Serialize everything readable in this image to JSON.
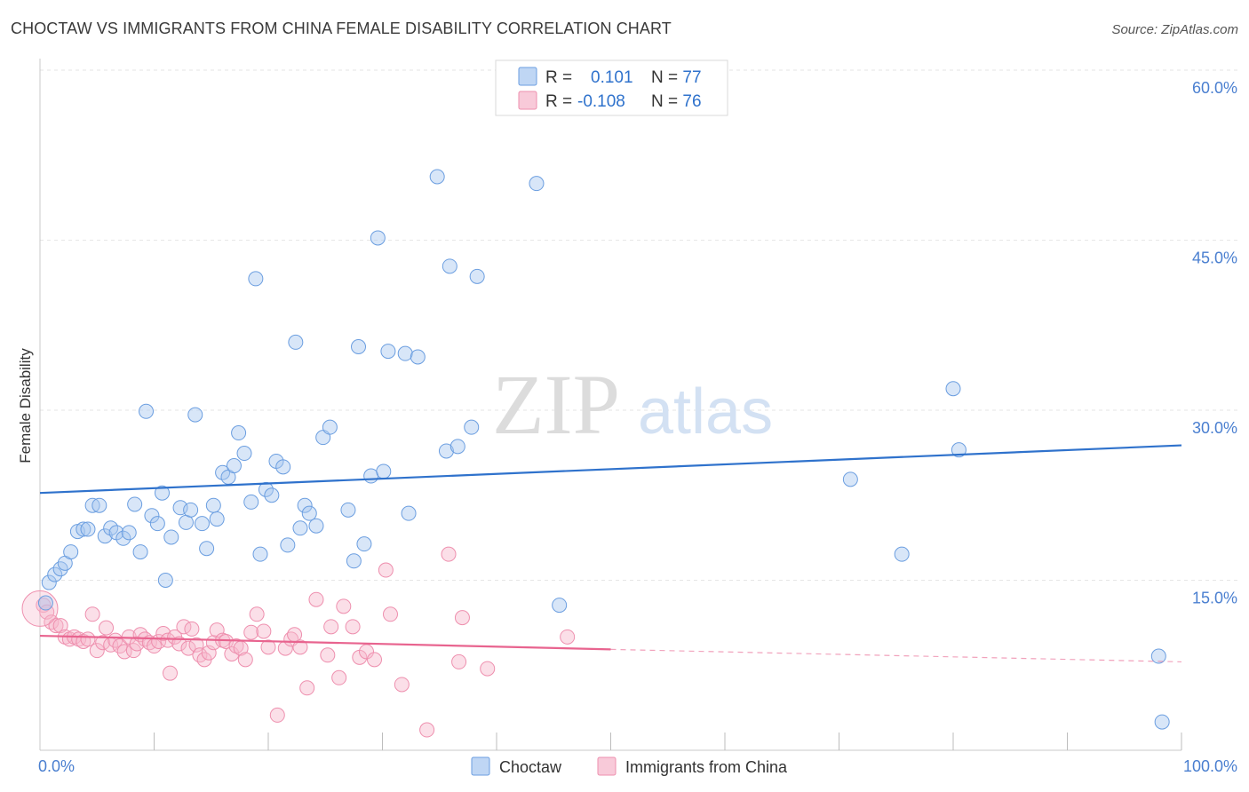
{
  "title": "CHOCTAW VS IMMIGRANTS FROM CHINA FEMALE DISABILITY CORRELATION CHART",
  "source": "Source: ZipAtlas.com",
  "watermark": {
    "part1": "ZIP",
    "part2": "atlas"
  },
  "colors": {
    "choctaw_fill": "#a9c8f0",
    "choctaw_stroke": "#6b9ee0",
    "choctaw_line": "#2f72cc",
    "china_fill": "#f6b8cc",
    "china_stroke": "#ee8fae",
    "china_line": "#e8648f",
    "tick_text": "#4a7fd0",
    "grid": "#e6e6e6"
  },
  "legend": {
    "rows": [
      {
        "r_label": "R = ",
        "r_value": "0.101",
        "n_label": "N = ",
        "n_value": "77"
      },
      {
        "r_label": "R = ",
        "r_value": "-0.108",
        "n_label": "N = ",
        "n_value": "76"
      }
    ]
  },
  "chart_data": {
    "type": "scatter",
    "title": "CHOCTAW VS IMMIGRANTS FROM CHINA FEMALE DISABILITY CORRELATION CHART",
    "xlabel": "",
    "ylabel": "Female Disability",
    "xlim": [
      0,
      100
    ],
    "ylim": [
      0,
      60
    ],
    "x_tick_labels": [
      "0.0%",
      "100.0%"
    ],
    "y_ticks": [
      15,
      30,
      45,
      60
    ],
    "y_tick_labels": [
      "15.0%",
      "30.0%",
      "45.0%",
      "60.0%"
    ],
    "grid": true,
    "legend_position": "top-center",
    "series": [
      {
        "name": "Choctaw",
        "r": 0.101,
        "n": 77,
        "trend": {
          "x": [
            0,
            100
          ],
          "y": [
            22.7,
            26.9
          ]
        },
        "points": [
          [
            0.5,
            13.0
          ],
          [
            0.8,
            14.8
          ],
          [
            1.3,
            15.5
          ],
          [
            1.8,
            16.0
          ],
          [
            2.2,
            16.5
          ],
          [
            2.7,
            17.5
          ],
          [
            3.3,
            19.3
          ],
          [
            3.8,
            19.5
          ],
          [
            4.2,
            19.5
          ],
          [
            4.6,
            21.6
          ],
          [
            5.2,
            21.6
          ],
          [
            5.7,
            18.9
          ],
          [
            6.2,
            19.6
          ],
          [
            6.7,
            19.2
          ],
          [
            7.3,
            18.7
          ],
          [
            7.8,
            19.2
          ],
          [
            8.3,
            21.7
          ],
          [
            8.8,
            17.5
          ],
          [
            9.3,
            29.9
          ],
          [
            9.8,
            20.7
          ],
          [
            10.3,
            20.0
          ],
          [
            10.7,
            22.7
          ],
          [
            11.0,
            15.0
          ],
          [
            11.5,
            18.8
          ],
          [
            12.3,
            21.4
          ],
          [
            12.8,
            20.1
          ],
          [
            13.2,
            21.2
          ],
          [
            13.6,
            29.6
          ],
          [
            14.2,
            20.0
          ],
          [
            14.6,
            17.8
          ],
          [
            15.2,
            21.6
          ],
          [
            15.5,
            20.4
          ],
          [
            16.0,
            24.5
          ],
          [
            16.5,
            24.1
          ],
          [
            17.0,
            25.1
          ],
          [
            17.4,
            28.0
          ],
          [
            17.9,
            26.2
          ],
          [
            18.5,
            21.9
          ],
          [
            18.9,
            41.6
          ],
          [
            19.3,
            17.3
          ],
          [
            19.8,
            23.0
          ],
          [
            20.3,
            22.5
          ],
          [
            20.7,
            25.5
          ],
          [
            21.3,
            25.0
          ],
          [
            21.7,
            18.1
          ],
          [
            22.4,
            36.0
          ],
          [
            22.8,
            19.6
          ],
          [
            23.2,
            21.6
          ],
          [
            23.6,
            20.9
          ],
          [
            24.2,
            19.8
          ],
          [
            24.8,
            27.6
          ],
          [
            25.4,
            28.5
          ],
          [
            27.0,
            21.2
          ],
          [
            27.5,
            16.7
          ],
          [
            27.9,
            35.6
          ],
          [
            28.4,
            18.2
          ],
          [
            29.0,
            24.2
          ],
          [
            29.6,
            45.2
          ],
          [
            30.1,
            24.6
          ],
          [
            30.5,
            35.2
          ],
          [
            32.0,
            35.0
          ],
          [
            32.3,
            20.9
          ],
          [
            33.1,
            34.7
          ],
          [
            34.8,
            50.6
          ],
          [
            35.6,
            26.4
          ],
          [
            35.9,
            42.7
          ],
          [
            36.6,
            26.8
          ],
          [
            37.8,
            28.5
          ],
          [
            38.3,
            41.8
          ],
          [
            43.5,
            50.0
          ],
          [
            45.5,
            12.8
          ],
          [
            71.0,
            23.9
          ],
          [
            75.5,
            17.3
          ],
          [
            80.0,
            31.9
          ],
          [
            80.5,
            26.5
          ],
          [
            98.0,
            8.3
          ],
          [
            98.3,
            2.5
          ]
        ]
      },
      {
        "name": "Immigrants from China",
        "r": -0.108,
        "n": 76,
        "trend": {
          "x": [
            0,
            50
          ],
          "y": [
            10.1,
            8.9
          ]
        },
        "trend_dashed": {
          "x": [
            50,
            100
          ],
          "y": [
            8.9,
            7.8
          ]
        },
        "points": [
          [
            0.3,
            12.8
          ],
          [
            0.6,
            12.2
          ],
          [
            1.0,
            11.3
          ],
          [
            1.4,
            11.0
          ],
          [
            1.8,
            11.0
          ],
          [
            2.2,
            10.0
          ],
          [
            2.6,
            9.8
          ],
          [
            3.0,
            10.0
          ],
          [
            3.4,
            9.8
          ],
          [
            3.8,
            9.6
          ],
          [
            4.2,
            9.8
          ],
          [
            4.6,
            12.0
          ],
          [
            5.0,
            8.8
          ],
          [
            5.5,
            9.5
          ],
          [
            5.8,
            10.8
          ],
          [
            6.2,
            9.3
          ],
          [
            6.6,
            9.7
          ],
          [
            7.0,
            9.2
          ],
          [
            7.4,
            8.7
          ],
          [
            7.8,
            10.0
          ],
          [
            8.2,
            8.8
          ],
          [
            8.5,
            9.4
          ],
          [
            8.8,
            10.2
          ],
          [
            9.2,
            9.8
          ],
          [
            9.6,
            9.5
          ],
          [
            10.0,
            9.2
          ],
          [
            10.4,
            9.6
          ],
          [
            10.8,
            10.3
          ],
          [
            11.2,
            9.7
          ],
          [
            11.4,
            6.8
          ],
          [
            11.8,
            10.0
          ],
          [
            12.2,
            9.4
          ],
          [
            12.6,
            10.9
          ],
          [
            13.0,
            9.0
          ],
          [
            13.3,
            10.7
          ],
          [
            13.7,
            9.3
          ],
          [
            14.0,
            8.4
          ],
          [
            14.4,
            8.0
          ],
          [
            14.8,
            8.6
          ],
          [
            15.2,
            9.5
          ],
          [
            15.5,
            10.6
          ],
          [
            16.0,
            9.7
          ],
          [
            16.3,
            9.6
          ],
          [
            16.8,
            8.5
          ],
          [
            17.2,
            9.2
          ],
          [
            17.6,
            9.0
          ],
          [
            18.0,
            8.0
          ],
          [
            18.5,
            10.4
          ],
          [
            19.0,
            12.0
          ],
          [
            19.6,
            10.5
          ],
          [
            20.0,
            9.1
          ],
          [
            20.8,
            3.1
          ],
          [
            21.5,
            9.0
          ],
          [
            22.0,
            9.8
          ],
          [
            22.3,
            10.2
          ],
          [
            22.8,
            9.1
          ],
          [
            23.4,
            5.5
          ],
          [
            24.2,
            13.3
          ],
          [
            25.2,
            8.4
          ],
          [
            25.5,
            10.9
          ],
          [
            26.2,
            6.4
          ],
          [
            26.6,
            12.7
          ],
          [
            27.4,
            10.9
          ],
          [
            28.0,
            8.2
          ],
          [
            28.6,
            8.7
          ],
          [
            29.3,
            8.0
          ],
          [
            30.3,
            15.9
          ],
          [
            30.7,
            12.0
          ],
          [
            31.7,
            5.8
          ],
          [
            33.9,
            1.8
          ],
          [
            35.8,
            17.3
          ],
          [
            36.7,
            7.8
          ],
          [
            37.0,
            11.7
          ],
          [
            39.2,
            7.2
          ],
          [
            46.2,
            10.0
          ],
          [
            0.0,
            12.5
          ]
        ]
      }
    ]
  }
}
